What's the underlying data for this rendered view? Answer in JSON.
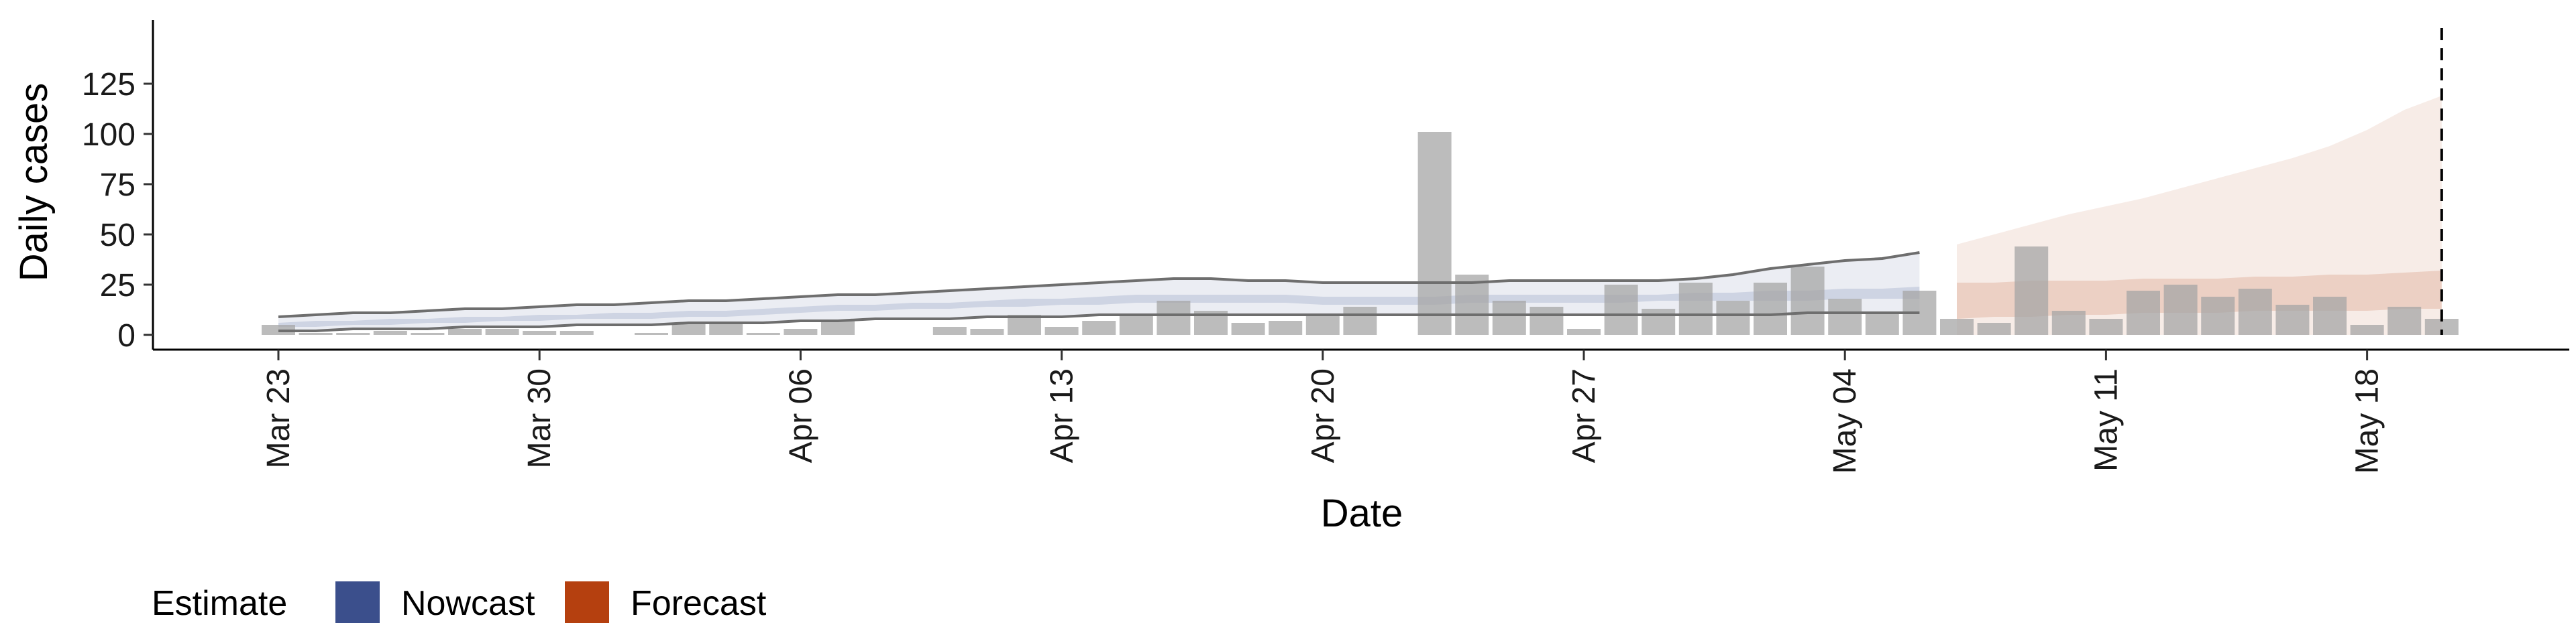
{
  "chart_data": {
    "type": "bar",
    "xlabel": "Date",
    "ylabel": "Daily cases",
    "ylim": [
      0,
      125
    ],
    "y_ticks": [
      0,
      25,
      50,
      75,
      100,
      125
    ],
    "x_tick_labels": [
      "Mar 23",
      "Mar 30",
      "Apr 06",
      "Apr 13",
      "Apr 20",
      "Apr 27",
      "May 04",
      "May 11",
      "May 18"
    ],
    "dates": [
      "Mar 23",
      "Mar 24",
      "Mar 25",
      "Mar 26",
      "Mar 27",
      "Mar 28",
      "Mar 29",
      "Mar 30",
      "Mar 31",
      "Apr 01",
      "Apr 02",
      "Apr 03",
      "Apr 04",
      "Apr 05",
      "Apr 06",
      "Apr 07",
      "Apr 08",
      "Apr 09",
      "Apr 10",
      "Apr 11",
      "Apr 12",
      "Apr 13",
      "Apr 14",
      "Apr 15",
      "Apr 16",
      "Apr 17",
      "Apr 18",
      "Apr 19",
      "Apr 20",
      "Apr 21",
      "Apr 22",
      "Apr 23",
      "Apr 24",
      "Apr 25",
      "Apr 26",
      "Apr 27",
      "Apr 28",
      "Apr 29",
      "Apr 30",
      "May 01",
      "May 02",
      "May 03",
      "May 04",
      "May 05",
      "May 06",
      "May 07",
      "May 08",
      "May 09",
      "May 10",
      "May 11",
      "May 12",
      "May 13",
      "May 14",
      "May 15",
      "May 16",
      "May 17",
      "May 18",
      "May 19",
      "May 20"
    ],
    "daily_cases": [
      5,
      1,
      1,
      2,
      1,
      3,
      3,
      2,
      2,
      0,
      1,
      6,
      6,
      1,
      3,
      7,
      0,
      0,
      4,
      3,
      10,
      4,
      7,
      10,
      17,
      12,
      6,
      7,
      10,
      14,
      0,
      101,
      30,
      17,
      14,
      3,
      25,
      13,
      26,
      17,
      26,
      34,
      18,
      11,
      22,
      8,
      6,
      44,
      12,
      8,
      22,
      25,
      19,
      23,
      15,
      19,
      5,
      14,
      8
    ],
    "series": [
      {
        "name": "Nowcast",
        "color": "#3b4f8c",
        "start": "Mar 23",
        "inner_lower": [
          4,
          4,
          5,
          5,
          6,
          6,
          7,
          7,
          8,
          8,
          8,
          9,
          9,
          10,
          11,
          12,
          12,
          13,
          13,
          14,
          14,
          15,
          15,
          16,
          16,
          16,
          16,
          16,
          15,
          15,
          15,
          15,
          16,
          16,
          16,
          16,
          16,
          17,
          17,
          17,
          17,
          17,
          18,
          18,
          18
        ],
        "inner_upper": [
          6,
          7,
          7,
          8,
          8,
          9,
          9,
          10,
          10,
          11,
          11,
          12,
          12,
          13,
          14,
          15,
          15,
          16,
          16,
          17,
          18,
          18,
          19,
          20,
          20,
          20,
          20,
          20,
          19,
          19,
          19,
          19,
          20,
          20,
          20,
          20,
          20,
          20,
          21,
          21,
          22,
          22,
          23,
          23,
          24
        ],
        "outer_lower": [
          2,
          2,
          3,
          3,
          3,
          4,
          4,
          4,
          5,
          5,
          5,
          6,
          6,
          6,
          7,
          7,
          8,
          8,
          8,
          9,
          9,
          9,
          10,
          10,
          10,
          10,
          10,
          10,
          10,
          10,
          10,
          10,
          10,
          10,
          10,
          10,
          10,
          10,
          10,
          10,
          10,
          11,
          11,
          11,
          11
        ],
        "outer_upper": [
          9,
          10,
          11,
          11,
          12,
          13,
          13,
          14,
          15,
          15,
          16,
          17,
          17,
          18,
          19,
          20,
          20,
          21,
          22,
          23,
          24,
          25,
          26,
          27,
          28,
          28,
          27,
          27,
          26,
          26,
          26,
          26,
          26,
          27,
          27,
          27,
          27,
          27,
          28,
          30,
          33,
          35,
          37,
          38,
          41
        ]
      },
      {
        "name": "Forecast",
        "color": "#b5400f",
        "start": "May 07",
        "inner_lower": [
          8,
          9,
          9,
          10,
          10,
          11,
          11,
          11,
          12,
          12,
          12,
          12,
          13,
          13
        ],
        "inner_upper": [
          26,
          26,
          27,
          27,
          27,
          28,
          28,
          28,
          29,
          29,
          30,
          30,
          31,
          32
        ],
        "outer_lower": [
          0,
          0,
          0,
          0,
          0,
          0,
          0,
          0,
          0,
          0,
          0,
          0,
          0,
          0
        ],
        "outer_upper": [
          45,
          50,
          55,
          60,
          64,
          68,
          73,
          78,
          83,
          88,
          94,
          102,
          112,
          119
        ]
      }
    ],
    "reference_line": "May 20",
    "legend": {
      "title": "Estimate",
      "position": "bottom-left",
      "items": [
        "Nowcast",
        "Forecast"
      ]
    }
  }
}
